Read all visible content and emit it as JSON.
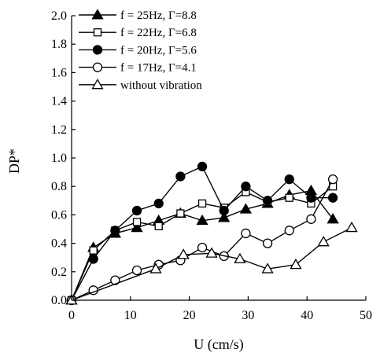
{
  "chart_data": {
    "type": "line",
    "title": "",
    "xlabel": "U (cm/s)",
    "ylabel": "DP*",
    "xlim": [
      0,
      50
    ],
    "ylim": [
      0,
      2.0
    ],
    "xticks": [
      "0",
      "10",
      "20",
      "30",
      "40",
      "50"
    ],
    "yticks": [
      "0.0",
      "0.2",
      "0.4",
      "0.6",
      "0.8",
      "1.0",
      "1.2",
      "1.4",
      "1.6",
      "1.8",
      "2.0"
    ],
    "grid": false,
    "legend_position": "top-left",
    "series": [
      {
        "name": "f = 25Hz, Γ=8.8",
        "marker": "filled-triangle",
        "x": [
          0,
          3.7,
          7.4,
          11.1,
          14.8,
          18.5,
          22.2,
          25.9,
          29.6,
          33.3,
          37.0,
          40.7,
          44.4
        ],
        "y": [
          0,
          0.37,
          0.47,
          0.51,
          0.56,
          0.61,
          0.56,
          0.58,
          0.64,
          0.68,
          0.74,
          0.77,
          0.57
        ]
      },
      {
        "name": "f = 22Hz, Γ=6.8",
        "marker": "open-square",
        "x": [
          0,
          3.7,
          7.4,
          11.1,
          14.8,
          18.5,
          22.2,
          25.9,
          29.6,
          33.3,
          37.0,
          40.7,
          44.4
        ],
        "y": [
          0,
          0.35,
          0.49,
          0.55,
          0.52,
          0.61,
          0.68,
          0.65,
          0.76,
          0.69,
          0.72,
          0.68,
          0.8
        ]
      },
      {
        "name": "f = 20Hz, Γ=5.6",
        "marker": "filled-circle",
        "x": [
          0,
          3.7,
          7.4,
          11.1,
          14.8,
          18.5,
          22.2,
          25.9,
          29.6,
          33.3,
          37.0,
          40.7,
          44.4
        ],
        "y": [
          0,
          0.29,
          0.49,
          0.63,
          0.68,
          0.87,
          0.94,
          0.63,
          0.8,
          0.7,
          0.85,
          0.72,
          0.72
        ]
      },
      {
        "name": "f = 17Hz, Γ=4.1",
        "marker": "open-circle",
        "x": [
          0,
          3.7,
          7.4,
          11.1,
          14.8,
          18.5,
          22.2,
          25.9,
          29.6,
          33.3,
          37.0,
          40.7,
          44.4
        ],
        "y": [
          0,
          0.07,
          0.14,
          0.21,
          0.25,
          0.28,
          0.37,
          0.31,
          0.47,
          0.4,
          0.49,
          0.57,
          0.85
        ]
      },
      {
        "name": "without vibration",
        "marker": "open-triangle",
        "x": [
          0,
          14.3,
          19.0,
          23.8,
          28.6,
          33.3,
          38.1,
          42.8,
          47.6
        ],
        "y": [
          0,
          0.22,
          0.32,
          0.33,
          0.29,
          0.22,
          0.25,
          0.41,
          0.51
        ]
      }
    ]
  }
}
